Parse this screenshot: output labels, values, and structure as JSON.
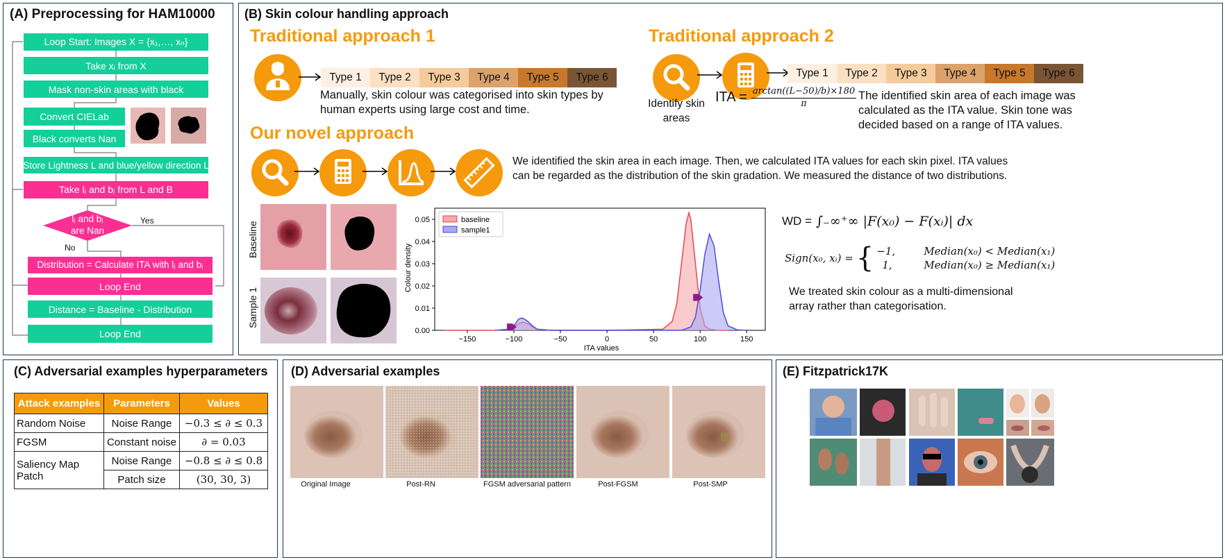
{
  "panelA": {
    "title": "(A) Preprocessing for HAM10000",
    "loop_start": "Loop Start: Images X = {x₁,…, xₙ}",
    "take_xi": "Take xᵢ from X",
    "mask": "Mask non-skin areas with black",
    "convert": "Convert CIELab",
    "black_nan": "Black converts Nan",
    "store": "Store Lightness L and blue/yellow direction L",
    "take_lb": "Take lⱼ and bⱼ from L and B",
    "decision": "lⱼ and bⱼ are Nan",
    "yes": "Yes",
    "no": "No",
    "distribution": "Distribution = Calculate ITA with lⱼ and bⱼ",
    "loop_end1": "Loop End",
    "distance": "Distance = Baseline - Distribution",
    "loop_end2": "Loop End"
  },
  "panelB": {
    "title": "(B) Skin colour handling approach",
    "trad1_heading": "Traditional approach 1",
    "trad1_text": "Manually, skin colour was categorised into skin types by human experts using large cost and time.",
    "trad2_heading": "Traditional approach 2",
    "identify_label": "Identify skin areas",
    "ita_formula_prefix": "ITA =",
    "ita_num": "arctan((L−50)/b)×180",
    "ita_den": "π",
    "trad2_text": "The identified skin area of each image was calculated as the ITA value. Skin tone was decided based on a range of ITA values.",
    "novel_heading": "Our novel approach",
    "novel_text": "We identified the skin area in each image. Then, we calculated ITA values for each skin pixel. ITA values can be regarded as the distribution of the skin gradation. We measured the distance of two distributions.",
    "skin_types": [
      "Type 1",
      "Type 2",
      "Type 3",
      "Type 4",
      "Type 5",
      "Type 6"
    ],
    "skin_colors": [
      "#fdf0e3",
      "#fbe0c4",
      "#f5cb9b",
      "#dca26b",
      "#c7782c",
      "#7a5533"
    ],
    "row_baseline": "Baseline",
    "row_sample": "Sample 1",
    "wd_prefix": "WD =",
    "wd_formula": "∫₋∞⁺∞ |F(x₀) − F(xᵢ)| dx",
    "sign_lhs": "Sign(x₀, xᵢ) =",
    "sign_case1_val": "−1,",
    "sign_case1_cond": "Median(x₀) < Median(x₁)",
    "sign_case2_val": "1,",
    "sign_case2_cond": "Median(x₀) ≥ Median(x₁)",
    "treated_text": "We treated skin colour as a multi-dimensional array rather than categorisation."
  },
  "chart_data": {
    "type": "area",
    "xlabel": "ITA values",
    "ylabel": "Colour density",
    "xlim": [
      -185,
      170
    ],
    "ylim": [
      0,
      0.055
    ],
    "x_ticks": [
      -150,
      -100,
      -50,
      0,
      50,
      100,
      150
    ],
    "x_tick_labels": [
      "−150",
      "−100",
      "−50",
      "0",
      "50",
      "100",
      "150"
    ],
    "y_ticks": [
      0.0,
      0.01,
      0.02,
      0.03,
      0.04,
      0.05
    ],
    "y_tick_labels": [
      "0.00",
      "0.01",
      "0.02",
      "0.03",
      "0.04",
      "0.05"
    ],
    "legend_position": "top-left",
    "series": [
      {
        "name": "baseline",
        "color": "#e8474c",
        "fill": "#f5a9ab",
        "x": [
          -175,
          -120,
          -105,
          -100,
          -95,
          -90,
          -85,
          -80,
          -75,
          -60,
          0,
          60,
          70,
          75,
          80,
          85,
          88,
          90,
          95,
          100,
          105,
          110,
          120,
          130
        ],
        "y": [
          0.0,
          0.0,
          0.0005,
          0.0015,
          0.003,
          0.0037,
          0.003,
          0.0015,
          0.0005,
          0.0,
          0.0,
          0.0005,
          0.004,
          0.012,
          0.03,
          0.048,
          0.053,
          0.05,
          0.03,
          0.01,
          0.002,
          0.0005,
          0.0,
          0.0
        ]
      },
      {
        "name": "sample1",
        "color": "#4d4ddb",
        "fill": "#a9a9f2",
        "x": [
          -120,
          -105,
          -100,
          -95,
          -92,
          -90,
          -85,
          -80,
          -75,
          -60,
          0,
          80,
          90,
          95,
          100,
          105,
          110,
          115,
          120,
          125,
          130,
          140,
          150
        ],
        "y": [
          0.0,
          0.0005,
          0.002,
          0.005,
          0.0055,
          0.0054,
          0.004,
          0.002,
          0.0005,
          0.0,
          0.0,
          0.0,
          0.0015,
          0.006,
          0.018,
          0.034,
          0.0433,
          0.038,
          0.022,
          0.008,
          0.002,
          0.0002,
          0.0
        ]
      }
    ],
    "annotation_arrows": [
      {
        "x": -100,
        "y": 0.0015
      },
      {
        "x": 100,
        "y": 0.0148
      }
    ]
  },
  "panelC": {
    "title": "(C) Adversarial examples hyperparameters",
    "headers": [
      "Attack examples",
      "Parameters",
      "Values"
    ],
    "random_noise": "Random Noise",
    "noise_range": "Noise Range",
    "rn_value": "−0.3 ≤ ∂ ≤ 0.3",
    "fgsm": "FGSM",
    "constant_noise": "Constant noise",
    "fgsm_value": "∂ = 0.03",
    "smp": "Saliency Map Patch",
    "smp_range_value": "−0.8 ≤ ∂ ≤ 0.8",
    "patch_size": "Patch size",
    "patch_value": "(30, 30, 3)"
  },
  "panelD": {
    "title": "(D) Adversarial examples",
    "captions": [
      "Original Image",
      "Post-RN",
      "FGSM adversarial pattern",
      "Post-FGSM",
      "Post-SMP"
    ]
  },
  "panelE": {
    "title": "(E) Fitzpatrick17K"
  }
}
